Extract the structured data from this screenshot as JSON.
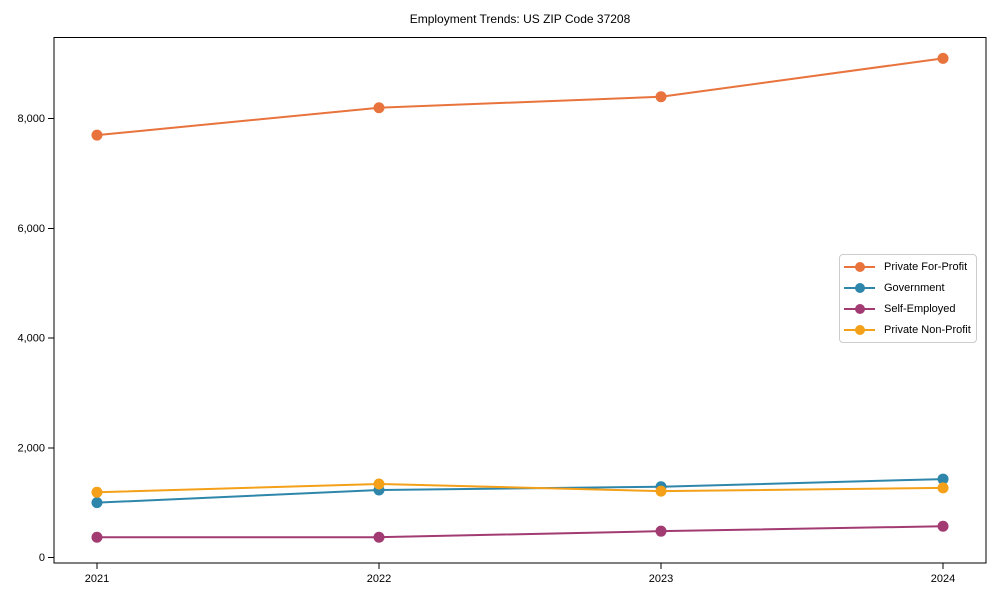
{
  "chart_data": {
    "type": "line",
    "title": "Employment Trends: US ZIP Code 37208",
    "categories": [
      "2021",
      "2022",
      "2023",
      "2024"
    ],
    "series": [
      {
        "name": "Private For-Profit",
        "color": "#E8733C",
        "values": [
          7700,
          8200,
          8400,
          9100
        ]
      },
      {
        "name": "Government",
        "color": "#2E86AB",
        "values": [
          1000,
          1230,
          1290,
          1430
        ]
      },
      {
        "name": "Self-Employed",
        "color": "#A23B72",
        "values": [
          370,
          370,
          480,
          570
        ]
      },
      {
        "name": "Private Non-Profit",
        "color": "#F4A019",
        "values": [
          1190,
          1340,
          1210,
          1270
        ]
      }
    ],
    "xlabel": "",
    "ylabel": "",
    "ylim": [
      -100,
      9480
    ],
    "yticks": {
      "values": [
        0,
        2000,
        4000,
        6000,
        8000
      ],
      "labels": [
        "0",
        "2,000",
        "4,000",
        "6,000",
        "8,000"
      ]
    },
    "grid": false,
    "legend_position": "center right",
    "marker": "circle",
    "axis_color": "#000000",
    "text_color": "#000000",
    "background": "#ffffff"
  }
}
